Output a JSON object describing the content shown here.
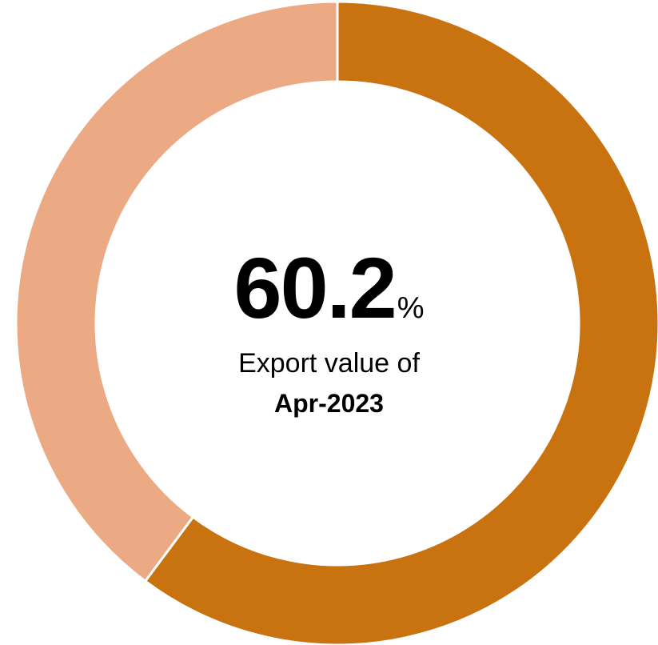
{
  "chart_data": {
    "type": "pie",
    "title": "",
    "slices": [
      {
        "value": 60.2,
        "color": "#C87310"
      },
      {
        "value": 39.8,
        "color": "#EBAA84"
      }
    ],
    "center_label": {
      "value": "60.2",
      "unit": "%",
      "line1": "Export value of",
      "line2": "Apr-2023"
    }
  }
}
